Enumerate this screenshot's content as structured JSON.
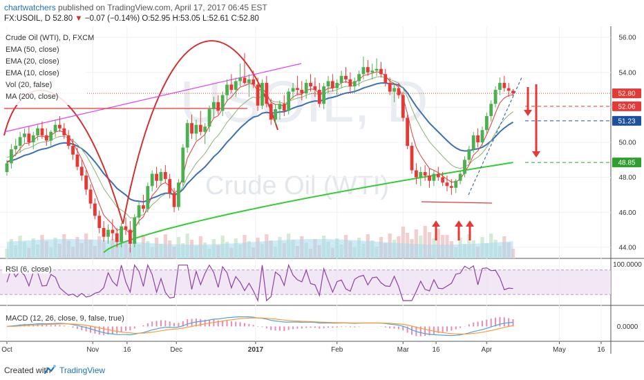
{
  "header": {
    "author": "chartwatchers",
    "published": " published on TradingView.com, April 17, 2017 06:45 EST",
    "symbol": "FX:USOIL, D",
    "last": "52.80",
    "change": "−0.07 (−0.14%)",
    "ohlc": "O:52.95 H:53.05 L:52.61 C:52.80"
  },
  "watermark": {
    "symbol": "USOIL, D",
    "name": "Crude Oil (WTI)"
  },
  "indicators": {
    "title": "Crude Oil (WTI), D, FXCM",
    "ema50": "EMA (50, close)",
    "ema20": "EMA (20, close)",
    "ema10": "EMA (10, close)",
    "vol": "Vol (20, false)",
    "ma200": "MA (200, close)",
    "rsi": "RSI (6, close)",
    "macd": "MACD (12, 26, close, 9, false, true)"
  },
  "footer": {
    "created": "Created with",
    "brand": "TradingView"
  },
  "chart_data": {
    "type": "candlestick",
    "x_ticks": [
      "Oct",
      "Nov",
      "16",
      "Dec",
      "2017",
      "Feb",
      "Mar",
      "16",
      "Apr",
      "May",
      "16"
    ],
    "y_ticks": [
      "44.00",
      "46.00",
      "48.00",
      "50.00",
      "52.00",
      "54.00",
      "56.00"
    ],
    "ylim": [
      43.6,
      56.4
    ],
    "price_badges": [
      {
        "value": "52.80",
        "color": "#e53935"
      },
      {
        "value": "52.06",
        "color": "#e53935"
      },
      {
        "value": "51.23",
        "color": "#1e50a0"
      },
      {
        "value": "48.85",
        "color": "#2e9e2e"
      }
    ],
    "rsi_ticks": [
      "100.0000"
    ],
    "macd_ticks": [
      "0.0000"
    ],
    "colors": {
      "up": "#4caf50",
      "down": "#e53935",
      "ema50": "#3b6fb5",
      "ma200": "#33cc33",
      "ema20": "#8bb174",
      "ema10": "#e53935",
      "volume": "#a8d8f0",
      "rsi": "#8e3fa6",
      "macd": "#4aa3df",
      "signal": "#ff9933"
    },
    "candles": [
      [
        0,
        48.3,
        49.0,
        48.1,
        48.8
      ],
      [
        1,
        48.8,
        49.9,
        48.5,
        49.6
      ],
      [
        2,
        49.6,
        50.2,
        49.2,
        49.8
      ],
      [
        3,
        49.8,
        50.6,
        49.4,
        50.3
      ],
      [
        4,
        50.3,
        50.8,
        49.9,
        50.5
      ],
      [
        5,
        50.5,
        50.9,
        49.8,
        50.0
      ],
      [
        6,
        50.0,
        50.6,
        49.6,
        50.4
      ],
      [
        7,
        50.4,
        51.0,
        50.1,
        50.8
      ],
      [
        8,
        50.8,
        51.2,
        50.2,
        50.4
      ],
      [
        9,
        50.4,
        50.8,
        49.8,
        50.1
      ],
      [
        10,
        50.1,
        50.7,
        49.7,
        50.6
      ],
      [
        11,
        50.6,
        51.3,
        50.3,
        51.0
      ],
      [
        12,
        51.0,
        51.5,
        50.6,
        50.8
      ],
      [
        13,
        50.8,
        51.1,
        50.2,
        50.4
      ],
      [
        14,
        50.4,
        50.7,
        49.6,
        49.8
      ],
      [
        15,
        49.8,
        50.2,
        49.0,
        49.3
      ],
      [
        16,
        49.3,
        49.7,
        48.4,
        48.6
      ],
      [
        17,
        48.6,
        49.0,
        47.8,
        48.1
      ],
      [
        18,
        48.1,
        48.4,
        47.0,
        47.3
      ],
      [
        19,
        47.3,
        47.6,
        46.2,
        46.5
      ],
      [
        20,
        46.5,
        46.8,
        45.6,
        45.8
      ],
      [
        21,
        45.8,
        46.1,
        44.8,
        45.1
      ],
      [
        22,
        45.1,
        45.5,
        44.3,
        44.6
      ],
      [
        23,
        44.6,
        45.3,
        44.2,
        45.0
      ],
      [
        24,
        45.0,
        45.6,
        44.4,
        44.8
      ],
      [
        25,
        44.8,
        45.1,
        44.0,
        44.3
      ],
      [
        26,
        44.3,
        45.4,
        44.0,
        45.2
      ],
      [
        27,
        45.2,
        45.7,
        44.7,
        45.0
      ],
      [
        28,
        45.0,
        45.5,
        43.7,
        44.2
      ],
      [
        29,
        44.2,
        45.9,
        44.0,
        45.7
      ],
      [
        30,
        45.7,
        46.6,
        45.3,
        46.4
      ],
      [
        31,
        46.4,
        47.0,
        46.0,
        46.2
      ],
      [
        32,
        46.2,
        47.7,
        46.0,
        47.5
      ],
      [
        33,
        47.5,
        48.4,
        47.2,
        48.2
      ],
      [
        34,
        48.2,
        48.6,
        47.4,
        47.8
      ],
      [
        35,
        47.8,
        48.5,
        47.5,
        48.3
      ],
      [
        36,
        48.3,
        48.7,
        47.7,
        47.9
      ],
      [
        37,
        47.9,
        48.2,
        46.8,
        47.1
      ],
      [
        38,
        47.1,
        47.4,
        46.0,
        46.3
      ],
      [
        39,
        46.3,
        47.9,
        46.1,
        47.7
      ],
      [
        40,
        47.7,
        49.9,
        47.5,
        49.7
      ],
      [
        41,
        49.7,
        51.3,
        49.4,
        51.1
      ],
      [
        42,
        51.1,
        51.6,
        50.2,
        50.5
      ],
      [
        43,
        50.5,
        51.3,
        50.1,
        51.0
      ],
      [
        44,
        51.0,
        51.8,
        50.4,
        50.6
      ],
      [
        45,
        50.6,
        51.1,
        49.9,
        50.9
      ],
      [
        46,
        50.9,
        52.1,
        50.6,
        51.9
      ],
      [
        47,
        51.9,
        52.6,
        51.4,
        52.3
      ],
      [
        48,
        52.3,
        52.7,
        51.6,
        51.8
      ],
      [
        49,
        51.8,
        52.9,
        51.5,
        52.7
      ],
      [
        50,
        52.7,
        53.6,
        52.3,
        53.3
      ],
      [
        51,
        53.3,
        53.9,
        52.8,
        53.0
      ],
      [
        52,
        53.0,
        53.7,
        52.6,
        53.5
      ],
      [
        53,
        53.5,
        54.5,
        53.2,
        53.7
      ],
      [
        54,
        53.7,
        55.1,
        53.3,
        53.4
      ],
      [
        55,
        53.4,
        53.9,
        52.6,
        53.6
      ],
      [
        56,
        53.6,
        54.1,
        53.1,
        53.3
      ],
      [
        57,
        53.3,
        53.7,
        51.8,
        52.1
      ],
      [
        58,
        52.1,
        53.6,
        51.9,
        53.4
      ],
      [
        59,
        53.4,
        53.8,
        52.0,
        52.2
      ],
      [
        60,
        52.2,
        52.5,
        51.0,
        51.3
      ],
      [
        61,
        51.3,
        52.2,
        51.0,
        51.9
      ],
      [
        62,
        51.9,
        52.4,
        51.3,
        52.2
      ],
      [
        63,
        52.2,
        52.7,
        51.5,
        51.8
      ],
      [
        64,
        51.8,
        53.1,
        51.6,
        52.9
      ],
      [
        65,
        52.9,
        53.4,
        52.5,
        53.1
      ],
      [
        66,
        53.1,
        53.8,
        52.7,
        53.0
      ],
      [
        67,
        53.0,
        53.5,
        52.4,
        52.8
      ],
      [
        68,
        52.8,
        53.6,
        52.5,
        53.4
      ],
      [
        69,
        53.4,
        53.9,
        52.9,
        53.2
      ],
      [
        70,
        53.2,
        53.7,
        52.6,
        53.0
      ],
      [
        71,
        53.0,
        53.4,
        52.0,
        52.2
      ],
      [
        72,
        52.2,
        53.4,
        51.9,
        53.2
      ],
      [
        73,
        53.2,
        53.8,
        52.8,
        53.5
      ],
      [
        74,
        53.5,
        53.9,
        52.9,
        53.1
      ],
      [
        75,
        53.1,
        53.6,
        52.7,
        53.4
      ],
      [
        76,
        53.4,
        54.1,
        53.1,
        53.8
      ],
      [
        77,
        53.8,
        54.3,
        53.4,
        53.6
      ],
      [
        78,
        53.6,
        54.0,
        52.9,
        53.2
      ],
      [
        79,
        53.2,
        53.7,
        52.8,
        53.5
      ],
      [
        80,
        53.5,
        54.1,
        53.2,
        53.9
      ],
      [
        81,
        53.9,
        54.9,
        53.6,
        54.3
      ],
      [
        82,
        54.3,
        54.7,
        53.8,
        54.0
      ],
      [
        83,
        54.0,
        54.5,
        53.6,
        54.1
      ],
      [
        84,
        54.1,
        54.8,
        53.8,
        54.2
      ],
      [
        85,
        54.2,
        54.6,
        53.7,
        53.9
      ],
      [
        86,
        53.9,
        54.2,
        53.2,
        53.4
      ],
      [
        87,
        53.4,
        53.7,
        52.7,
        52.9
      ],
      [
        88,
        52.9,
        53.4,
        52.3,
        53.1
      ],
      [
        89,
        53.1,
        53.4,
        52.5,
        52.7
      ],
      [
        90,
        52.7,
        52.9,
        51.2,
        51.4
      ],
      [
        91,
        51.4,
        51.6,
        49.6,
        49.8
      ],
      [
        92,
        49.8,
        50.0,
        48.2,
        48.4
      ],
      [
        93,
        48.4,
        48.8,
        47.6,
        48.0
      ],
      [
        94,
        48.0,
        48.6,
        47.5,
        48.3
      ],
      [
        95,
        48.3,
        48.7,
        47.8,
        48.1
      ],
      [
        96,
        48.1,
        48.5,
        47.4,
        47.8
      ],
      [
        97,
        47.8,
        48.4,
        47.5,
        48.2
      ],
      [
        98,
        48.2,
        48.6,
        47.8,
        48.0
      ],
      [
        99,
        48.0,
        48.3,
        47.5,
        47.7
      ],
      [
        100,
        47.7,
        48.1,
        47.2,
        47.5
      ],
      [
        101,
        47.5,
        47.9,
        47.0,
        47.4
      ],
      [
        102,
        47.4,
        47.9,
        47.1,
        47.8
      ],
      [
        103,
        47.8,
        48.4,
        47.6,
        48.2
      ],
      [
        104,
        48.2,
        49.2,
        48.0,
        49.0
      ],
      [
        105,
        49.0,
        49.8,
        48.8,
        49.6
      ],
      [
        106,
        49.6,
        50.6,
        49.4,
        50.4
      ],
      [
        107,
        50.4,
        50.8,
        49.7,
        50.0
      ],
      [
        108,
        50.0,
        50.9,
        49.8,
        50.7
      ],
      [
        109,
        50.7,
        51.7,
        50.5,
        51.5
      ],
      [
        110,
        51.5,
        52.4,
        51.2,
        52.2
      ],
      [
        111,
        52.2,
        53.2,
        52.0,
        53.0
      ],
      [
        112,
        53.0,
        53.7,
        52.7,
        53.4
      ],
      [
        113,
        53.4,
        53.8,
        52.9,
        53.1
      ],
      [
        114,
        53.1,
        53.4,
        52.6,
        52.95
      ],
      [
        115,
        52.95,
        53.05,
        52.61,
        52.8
      ]
    ]
  }
}
